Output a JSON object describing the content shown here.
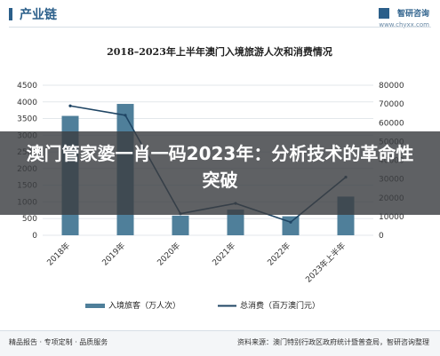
{
  "header": {
    "section_title": "产业链",
    "brand_name": "智研咨询",
    "brand_url": "www.chyxx.com"
  },
  "overlay": {
    "headline": "澳门管家婆一肖一码2023年：分析技术的革命性突破"
  },
  "footer": {
    "left": "精品报告 · 专项定制 · 品质服务",
    "right": "资料来源：澳门特别行政区政府统计暨普查局，智研咨询整理"
  },
  "colors": {
    "bar": "#4f7f9a",
    "line": "#1f4564",
    "brand": "#2b5f8a"
  },
  "chart_data": {
    "type": "bar",
    "title": "2018–2023年上半年澳门入境旅游人次和消费情况",
    "categories": [
      "2018年",
      "2019年",
      "2020年",
      "2021年",
      "2022年",
      "2023年上半年"
    ],
    "series": [
      {
        "name": "入境旅客（万人次）",
        "type": "bar",
        "axis": "left",
        "values": [
          3580,
          3940,
          590,
          770,
          570,
          1160
        ]
      },
      {
        "name": "总消费（百万澳门元）",
        "type": "line",
        "axis": "right",
        "values": [
          69000,
          64000,
          11500,
          17000,
          7000,
          31000
        ]
      }
    ],
    "ylim_left": [
      0,
      4500
    ],
    "yticks_left": [
      0,
      500,
      1000,
      1500,
      2000,
      2500,
      3000,
      3500,
      4000,
      4500
    ],
    "ylim_right": [
      0,
      80000
    ],
    "yticks_right": [
      0,
      10000,
      20000,
      30000,
      40000,
      50000,
      60000,
      70000,
      80000
    ],
    "grid": true,
    "legend_position": "bottom"
  }
}
